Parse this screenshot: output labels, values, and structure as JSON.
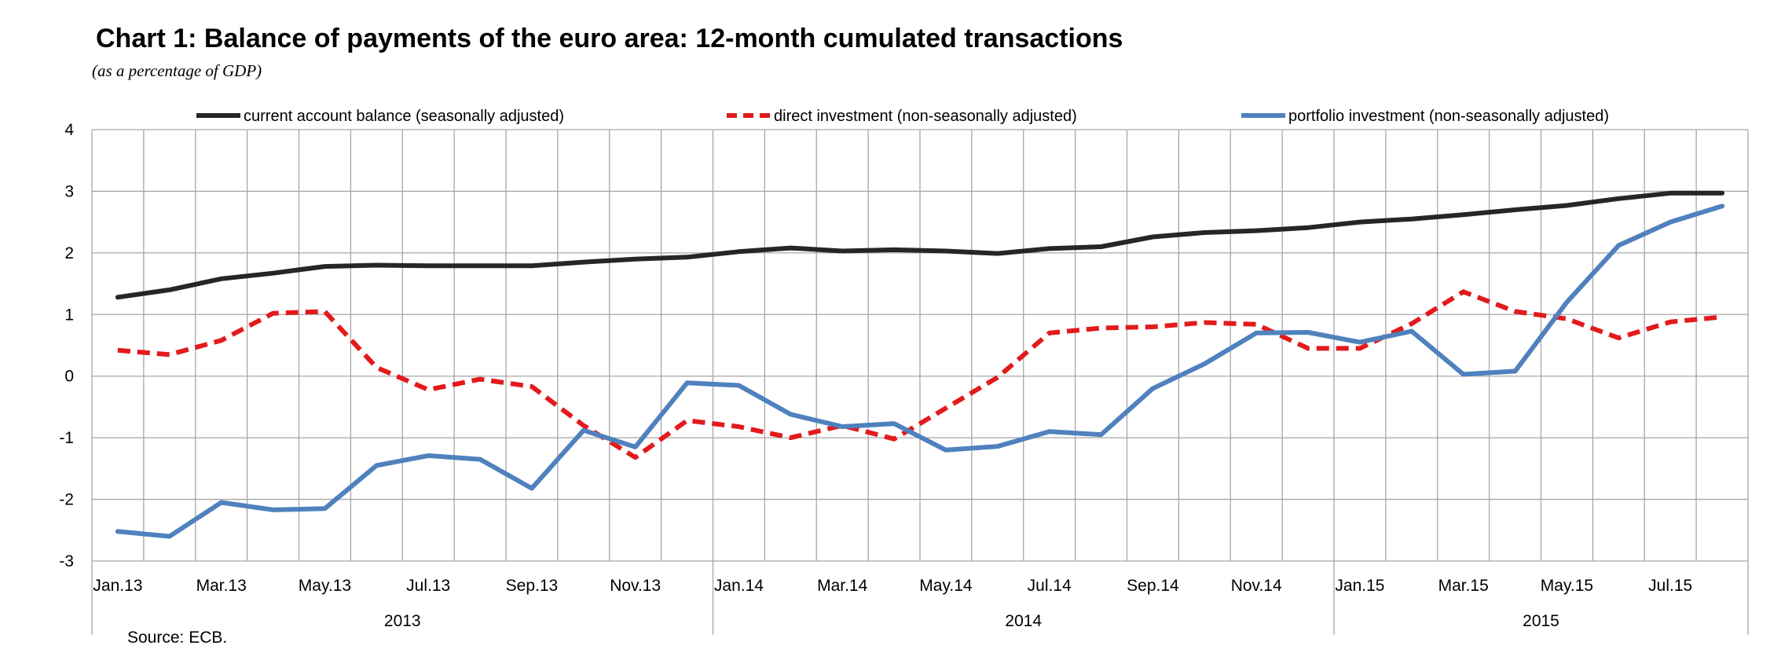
{
  "header": {
    "title": "Chart 1: Balance of payments of the euro area: 12-month cumulated transactions",
    "subtitle": "(as a percentage of GDP)"
  },
  "footer": {
    "source": "Source: ECB."
  },
  "chart_data": {
    "type": "line",
    "title": "Chart 1: Balance of payments of the euro area: 12-month cumulated transactions",
    "subtitle": "(as a percentage of GDP)",
    "ylim": [
      -3,
      4
    ],
    "yticks": [
      "4",
      "3",
      "2",
      "1",
      "0",
      "-1",
      "-2",
      "-3"
    ],
    "grid": true,
    "legend_position": "top",
    "x": [
      "Jan.13",
      "Feb.13",
      "Mar.13",
      "Apr.13",
      "May.13",
      "Jun.13",
      "Jul.13",
      "Aug.13",
      "Sep.13",
      "Oct.13",
      "Nov.13",
      "Dec.13",
      "Jan.14",
      "Feb.14",
      "Mar.14",
      "Apr.14",
      "May.14",
      "Jun.14",
      "Jul.14",
      "Aug.14",
      "Sep.14",
      "Oct.14",
      "Nov.14",
      "Dec.14",
      "Jan.15",
      "Feb.15",
      "Mar.15",
      "Apr.15",
      "May.15",
      "Jun.15",
      "Jul.15",
      "Aug.15"
    ],
    "x_tick_labels": [
      "Jan.13",
      "Mar.13",
      "May.13",
      "Jul.13",
      "Sep.13",
      "Nov.13",
      "Jan.14",
      "Mar.14",
      "May.14",
      "Jul.14",
      "Sep.14",
      "Nov.14",
      "Jan.15",
      "Mar.15",
      "May.15",
      "Jul.15"
    ],
    "year_labels": [
      "2013",
      "2014",
      "2015"
    ],
    "series": [
      {
        "name": "current account balance (seasonally adjusted)",
        "color": "#262626",
        "style": "solid",
        "values": [
          1.28,
          1.4,
          1.58,
          1.67,
          1.78,
          1.8,
          1.79,
          1.79,
          1.79,
          1.85,
          1.9,
          1.93,
          2.02,
          2.08,
          2.03,
          2.05,
          2.03,
          1.99,
          2.07,
          2.1,
          2.26,
          2.33,
          2.36,
          2.41,
          2.5,
          2.55,
          2.62,
          2.7,
          2.77,
          2.88,
          2.97,
          2.97
        ]
      },
      {
        "name": "direct investment (non-seasonally adjusted)",
        "color": "#e31a1c",
        "style": "dashed",
        "values": [
          0.42,
          0.35,
          0.58,
          1.02,
          1.05,
          0.14,
          -0.22,
          -0.05,
          -0.17,
          -0.8,
          -1.32,
          -0.72,
          -0.82,
          -1.0,
          -0.8,
          -1.02,
          -0.52,
          -0.02,
          0.7,
          0.78,
          0.8,
          0.87,
          0.84,
          0.45,
          0.45,
          0.85,
          1.37,
          1.05,
          0.93,
          0.62,
          0.88,
          0.96
        ]
      },
      {
        "name": "portfolio investment (non-seasonally adjusted)",
        "color": "#4f81bd",
        "style": "solid",
        "values": [
          -2.52,
          -2.6,
          -2.05,
          -2.17,
          -2.15,
          -1.45,
          -1.29,
          -1.35,
          -1.82,
          -0.88,
          -1.15,
          -0.11,
          -0.15,
          -0.62,
          -0.82,
          -0.77,
          -1.2,
          -1.14,
          -0.9,
          -0.95,
          -0.2,
          0.2,
          0.7,
          0.71,
          0.55,
          0.73,
          0.03,
          0.08,
          1.2,
          2.12,
          2.5,
          2.76
        ]
      }
    ]
  }
}
